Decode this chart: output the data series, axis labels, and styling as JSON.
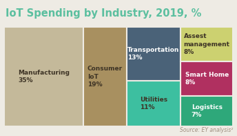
{
  "title": "IoT Spending by Industry, 2019, %",
  "title_color": "#5bbf9f",
  "background_color": "#eeebe4",
  "source_text": "Source: EY analysis²",
  "segments": [
    {
      "label": "Manufacturing",
      "value": 35,
      "color": "#c4b99a",
      "text_color": "#3d3325"
    },
    {
      "label": "Consumer\nIoT",
      "value": 19,
      "color": "#a89060",
      "text_color": "#3d3325"
    },
    {
      "label": "Transportation",
      "value": 13,
      "color": "#4a6278",
      "text_color": "#ffffff"
    },
    {
      "label": "Utilities",
      "value": 11,
      "color": "#3dbfa0",
      "text_color": "#3d3325"
    },
    {
      "label": "Assest\nmanagement",
      "value": 8,
      "color": "#ccd170",
      "text_color": "#3d3325"
    },
    {
      "label": "Smart Home",
      "value": 8,
      "color": "#b03060",
      "text_color": "#ffffff"
    },
    {
      "label": "Logistics",
      "value": 7,
      "color": "#2ea87a",
      "text_color": "#ffffff"
    }
  ],
  "border_color": "#eeebe4",
  "border_lw": 1.5,
  "label_fontsize": 6.5,
  "title_fontsize": 10.5,
  "source_fontsize": 5.5
}
